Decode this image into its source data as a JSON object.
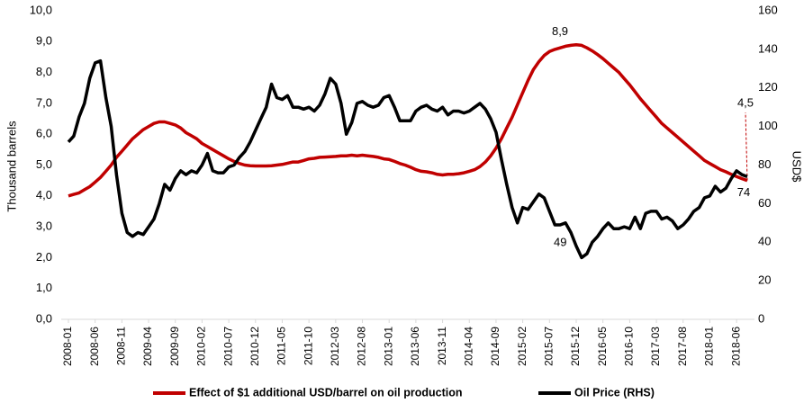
{
  "chart_data": {
    "type": "line",
    "ylabel": "Thousand barrels",
    "y2label": "USD$",
    "ylim": [
      0,
      10
    ],
    "yticks": [
      {
        "value": 0,
        "label": "0,0"
      },
      {
        "value": 1,
        "label": "1,0"
      },
      {
        "value": 2,
        "label": "2,0"
      },
      {
        "value": 3,
        "label": "3,0"
      },
      {
        "value": 4,
        "label": "4,0"
      },
      {
        "value": 5,
        "label": "5,0"
      },
      {
        "value": 6,
        "label": "6,0"
      },
      {
        "value": 7,
        "label": "7,0"
      },
      {
        "value": 8,
        "label": "8,0"
      },
      {
        "value": 9,
        "label": "9,0"
      },
      {
        "value": 10,
        "label": "10,0"
      }
    ],
    "y2lim": [
      0,
      160
    ],
    "y2ticks": [
      0,
      20,
      40,
      60,
      80,
      100,
      120,
      140,
      160
    ],
    "grid": false,
    "legend": "bottom",
    "categories": [
      "2008-01",
      null,
      null,
      null,
      null,
      "2008-06",
      null,
      null,
      null,
      null,
      "2008-11",
      null,
      null,
      null,
      null,
      "2009-04",
      null,
      null,
      null,
      null,
      "2009-09",
      null,
      null,
      null,
      null,
      "2010-02",
      null,
      null,
      null,
      null,
      "2010-07",
      null,
      null,
      null,
      null,
      "2010-12",
      null,
      null,
      null,
      null,
      "2011-05",
      null,
      null,
      null,
      null,
      "2011-10",
      null,
      null,
      null,
      null,
      "2012-03",
      null,
      null,
      null,
      null,
      "2012-08",
      null,
      null,
      null,
      null,
      "2013-01",
      null,
      null,
      null,
      null,
      "2013-06",
      null,
      null,
      null,
      null,
      "2013-11",
      null,
      null,
      null,
      null,
      "2014-04",
      null,
      null,
      null,
      null,
      "2014-09",
      null,
      null,
      null,
      null,
      "2015-02",
      null,
      null,
      null,
      null,
      "2015-07",
      null,
      null,
      null,
      null,
      "2015-12",
      null,
      null,
      null,
      null,
      "2016-05",
      null,
      null,
      null,
      null,
      "2016-10",
      null,
      null,
      null,
      null,
      "2017-03",
      null,
      null,
      null,
      null,
      "2017-08",
      null,
      null,
      null,
      null,
      "2018-01",
      null,
      null,
      null,
      null,
      "2018-06",
      null,
      null
    ],
    "series": [
      {
        "name": "Effect of $1 additional USD/barrel on oil production",
        "color": "#c00000",
        "axis": "y",
        "values": [
          4.0,
          4.05,
          4.1,
          4.2,
          4.3,
          4.45,
          4.6,
          4.8,
          5.0,
          5.25,
          5.45,
          5.65,
          5.85,
          6.0,
          6.15,
          6.25,
          6.35,
          6.4,
          6.4,
          6.35,
          6.3,
          6.2,
          6.05,
          5.95,
          5.85,
          5.7,
          5.6,
          5.5,
          5.4,
          5.3,
          5.2,
          5.12,
          5.05,
          5.0,
          4.98,
          4.97,
          4.97,
          4.97,
          4.98,
          5.0,
          5.02,
          5.06,
          5.1,
          5.1,
          5.15,
          5.2,
          5.22,
          5.25,
          5.26,
          5.27,
          5.28,
          5.3,
          5.3,
          5.32,
          5.3,
          5.32,
          5.3,
          5.28,
          5.25,
          5.2,
          5.18,
          5.12,
          5.05,
          5.0,
          4.93,
          4.85,
          4.8,
          4.78,
          4.75,
          4.7,
          4.68,
          4.7,
          4.7,
          4.72,
          4.75,
          4.8,
          4.85,
          4.95,
          5.1,
          5.3,
          5.55,
          5.85,
          6.2,
          6.55,
          6.95,
          7.35,
          7.75,
          8.1,
          8.35,
          8.55,
          8.68,
          8.75,
          8.8,
          8.85,
          8.88,
          8.9,
          8.88,
          8.8,
          8.7,
          8.58,
          8.45,
          8.3,
          8.15,
          8.0,
          7.8,
          7.6,
          7.38,
          7.15,
          6.95,
          6.75,
          6.55,
          6.35,
          6.2,
          6.05,
          5.9,
          5.75,
          5.6,
          5.45,
          5.3,
          5.15,
          5.05,
          4.95,
          4.85,
          4.78,
          4.7,
          4.63,
          4.56,
          4.5
        ],
        "value_labels": [
          null,
          null,
          null,
          null,
          null,
          null,
          null,
          null,
          null,
          null,
          null,
          null,
          null,
          null,
          null,
          null,
          null,
          null,
          null,
          null,
          null,
          null,
          null,
          null,
          null,
          null,
          null,
          null,
          null,
          null,
          null,
          null,
          null,
          null,
          null,
          null,
          null,
          null,
          null,
          null,
          null,
          null,
          null,
          null,
          null,
          null,
          null,
          null,
          null,
          null,
          null,
          null,
          null,
          null,
          null,
          null,
          null,
          null,
          null,
          null,
          null,
          null,
          null,
          null,
          null,
          null,
          null,
          null,
          null,
          null,
          null,
          null,
          null,
          null,
          null,
          null,
          null,
          null,
          null,
          null,
          null,
          null,
          null,
          null,
          null,
          null,
          null,
          null,
          null,
          null,
          null,
          null,
          null,
          null,
          null,
          "8,9",
          null,
          null,
          null,
          null,
          null,
          null,
          null,
          null,
          null,
          null,
          null,
          null,
          null,
          null,
          null,
          null,
          null,
          null,
          null,
          null,
          null,
          null,
          null,
          null,
          null,
          null,
          null,
          null,
          null,
          null,
          null,
          "4,5"
        ]
      },
      {
        "name": "Oil Price (RHS)",
        "color": "#000000",
        "axis": "y2",
        "values": [
          92,
          95,
          105,
          112,
          125,
          133,
          134,
          115,
          100,
          75,
          55,
          45,
          43,
          45,
          44,
          48,
          52,
          60,
          70,
          67,
          73,
          77,
          75,
          77,
          76,
          80,
          86,
          77,
          76,
          76,
          79,
          80,
          84,
          87,
          92,
          98,
          104,
          110,
          122,
          115,
          114,
          116,
          110,
          110,
          109,
          110,
          108,
          111,
          117,
          125,
          122,
          112,
          96,
          102,
          112,
          113,
          111,
          110,
          111,
          115,
          116,
          110,
          103,
          103,
          103,
          108,
          110,
          111,
          109,
          108,
          110,
          106,
          108,
          108,
          107,
          108,
          110,
          112,
          109,
          104,
          97,
          83,
          70,
          58,
          50,
          58,
          57,
          61,
          65,
          63,
          56,
          49,
          49,
          50,
          45,
          38,
          32,
          34,
          40,
          43,
          47,
          50,
          47,
          47,
          48,
          47,
          53,
          47,
          55,
          56,
          56,
          52,
          53,
          51,
          47,
          49,
          52,
          56,
          58,
          63,
          64,
          69,
          66,
          68,
          73,
          77,
          75,
          74
        ],
        "value_labels": [
          null,
          null,
          null,
          null,
          null,
          null,
          null,
          null,
          null,
          null,
          null,
          null,
          null,
          null,
          null,
          null,
          null,
          null,
          null,
          null,
          null,
          null,
          null,
          null,
          null,
          null,
          null,
          null,
          null,
          null,
          null,
          null,
          null,
          null,
          null,
          null,
          null,
          null,
          null,
          null,
          null,
          null,
          null,
          null,
          null,
          null,
          null,
          null,
          null,
          null,
          null,
          null,
          null,
          null,
          null,
          null,
          null,
          null,
          null,
          null,
          null,
          null,
          null,
          null,
          null,
          null,
          null,
          null,
          null,
          null,
          null,
          null,
          null,
          null,
          null,
          null,
          null,
          null,
          null,
          null,
          null,
          null,
          null,
          null,
          null,
          null,
          null,
          null,
          null,
          null,
          null,
          null,
          "49",
          null,
          null,
          null,
          null,
          null,
          null,
          null,
          null,
          null,
          null,
          null,
          null,
          null,
          null,
          null,
          null,
          null,
          null,
          null,
          null,
          null,
          null,
          null,
          null,
          null,
          null,
          null,
          null,
          null,
          null,
          null,
          null,
          null,
          null,
          "74"
        ]
      }
    ]
  }
}
